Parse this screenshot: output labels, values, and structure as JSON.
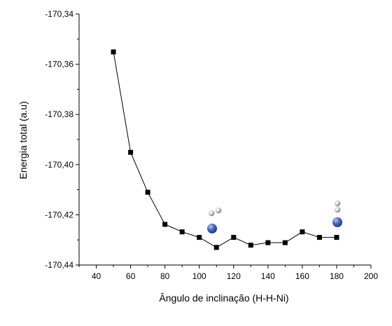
{
  "chart_data": {
    "type": "line",
    "title": "",
    "xlabel": "Ângulo de inclinação (H-H-Ni)",
    "ylabel": "Energia total (a.u)",
    "xlim": [
      30,
      200
    ],
    "ylim": [
      -170.44,
      -170.34
    ],
    "x_ticks": [
      40,
      60,
      80,
      100,
      120,
      140,
      160,
      180,
      200
    ],
    "y_ticks": [
      -170.34,
      -170.36,
      -170.38,
      -170.4,
      -170.42,
      -170.44
    ],
    "x_tick_labels": [
      "40",
      "60",
      "80",
      "100",
      "120",
      "140",
      "160",
      "180",
      "200"
    ],
    "y_tick_labels": [
      "-170,34",
      "-170,36",
      "-170,38",
      "-170,40",
      "-170,42",
      "-170,44"
    ],
    "grid": false,
    "legend": "none",
    "marker": "square",
    "series": [
      {
        "x": [
          50,
          60,
          70,
          80,
          90,
          100,
          110,
          120,
          130,
          140,
          150,
          160,
          170,
          180
        ],
        "values": [
          -170.3551,
          -170.3951,
          -170.411,
          -170.4238,
          -170.4268,
          -170.429,
          -170.433,
          -170.429,
          -170.4321,
          -170.4311,
          -170.4311,
          -170.4268,
          -170.429,
          -170.429
        ]
      }
    ],
    "annotations": [
      {
        "type": "molecule-icon",
        "name": "bent-h2-ni-molecule",
        "near_x": 110
      },
      {
        "type": "molecule-icon",
        "name": "linear-h2-ni-molecule",
        "near_x": 180
      }
    ],
    "colors": {
      "line": "#000000",
      "marker": "#000000",
      "hydrogen": "#d9d9d9",
      "nickel": "#3b5bb0"
    }
  }
}
